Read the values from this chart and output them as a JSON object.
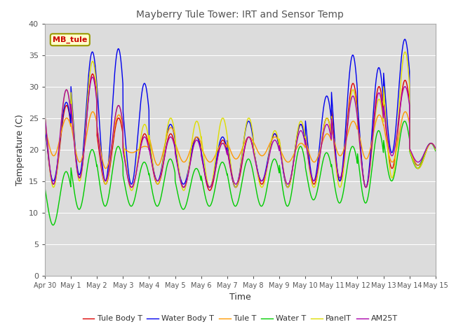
{
  "title": "Mayberry Tule Tower: IRT and Sensor Temp",
  "xlabel": "Time",
  "ylabel": "Temperature (C)",
  "ylim": [
    0,
    40
  ],
  "yticks": [
    0,
    5,
    10,
    15,
    20,
    25,
    30,
    35,
    40
  ],
  "x_labels": [
    "Apr 30",
    "May 1",
    "May 2",
    "May 3",
    "May 4",
    "May 5",
    "May 6",
    "May 7",
    "May 8",
    "May 9",
    "May 10",
    "May 11",
    "May 12",
    "May 13",
    "May 14",
    "May 15"
  ],
  "site_label": "MB_tule",
  "legend_entries": [
    "Tule Body T",
    "Water Body T",
    "Tule T",
    "Water T",
    "PanelT",
    "AM25T"
  ],
  "line_colors": [
    "#dd0000",
    "#0000ee",
    "#ff9900",
    "#00cc00",
    "#dddd00",
    "#aa00aa"
  ],
  "background_color": "#dcdcdc",
  "title_color": "#555555",
  "n_days": 15,
  "points_per_day": 144,
  "daily_min_tule_body": [
    14.5,
    15.5,
    14.5,
    14.0,
    14.5,
    14.0,
    13.5,
    14.0,
    14.5,
    14.0,
    14.5,
    15.0,
    14.0,
    17.0,
    17.0
  ],
  "daily_max_tule_body": [
    27.0,
    32.0,
    25.0,
    22.5,
    22.5,
    22.0,
    21.5,
    22.0,
    22.5,
    24.0,
    25.0,
    30.5,
    30.0,
    31.0,
    21.0
  ],
  "daily_min_water_body": [
    15.0,
    16.0,
    15.0,
    14.5,
    15.0,
    14.5,
    14.0,
    14.0,
    15.0,
    14.0,
    15.0,
    15.0,
    14.0,
    19.5,
    17.5
  ],
  "daily_max_water_body": [
    27.5,
    35.5,
    36.0,
    30.5,
    24.0,
    22.0,
    22.0,
    24.5,
    22.5,
    24.0,
    28.5,
    35.0,
    33.0,
    37.5,
    21.0
  ],
  "daily_min_tule_t": [
    19.0,
    18.0,
    17.0,
    19.5,
    17.5,
    18.0,
    18.0,
    18.5,
    19.0,
    18.0,
    18.0,
    19.0,
    18.5,
    18.0,
    17.5
  ],
  "daily_max_tule_t": [
    25.0,
    26.0,
    25.5,
    20.5,
    23.5,
    22.0,
    21.0,
    22.0,
    22.0,
    21.0,
    22.5,
    24.5,
    25.5,
    26.0,
    21.0
  ],
  "daily_min_water_t": [
    8.0,
    10.5,
    11.0,
    11.0,
    11.0,
    10.5,
    11.0,
    11.0,
    11.0,
    11.0,
    12.0,
    11.5,
    11.5,
    15.0,
    17.0
  ],
  "daily_max_water_t": [
    16.5,
    20.0,
    20.5,
    18.0,
    18.5,
    17.0,
    18.0,
    18.5,
    18.5,
    20.5,
    19.5,
    20.5,
    23.0,
    24.5,
    21.0
  ],
  "daily_min_panel": [
    14.0,
    15.0,
    14.5,
    13.5,
    14.5,
    13.5,
    14.0,
    14.0,
    14.0,
    14.0,
    14.0,
    14.0,
    14.0,
    15.5,
    17.0
  ],
  "daily_max_panel": [
    29.5,
    34.0,
    27.0,
    24.0,
    25.0,
    24.5,
    25.0,
    25.0,
    23.0,
    24.5,
    25.0,
    29.5,
    28.0,
    35.5,
    21.0
  ],
  "daily_min_am25": [
    14.5,
    15.5,
    15.0,
    14.0,
    15.0,
    14.0,
    14.0,
    14.5,
    15.0,
    14.5,
    15.0,
    15.5,
    14.0,
    19.0,
    18.0
  ],
  "daily_max_am25": [
    29.5,
    31.5,
    27.0,
    22.0,
    22.0,
    21.5,
    21.0,
    22.0,
    21.5,
    23.0,
    24.0,
    28.5,
    29.0,
    30.0,
    21.0
  ]
}
